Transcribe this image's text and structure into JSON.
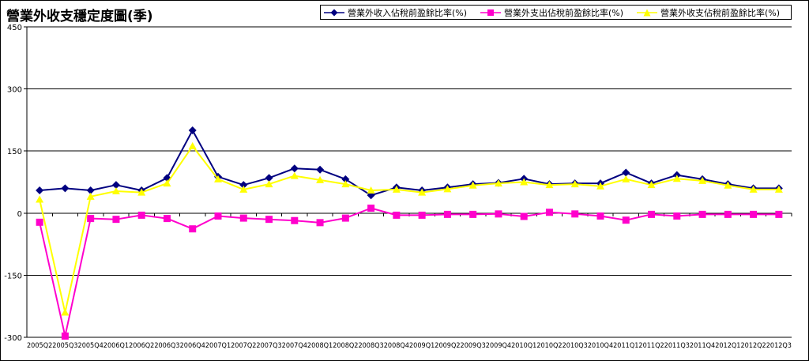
{
  "chart_data": {
    "type": "line",
    "title": "營業外收支穩定度圖(季)",
    "xlabel": "",
    "ylabel": "",
    "ylim": [
      -300,
      450
    ],
    "yticks": [
      "450",
      "300",
      "150",
      "0",
      "-150",
      "-300"
    ],
    "grid": true,
    "legend_position": "top-right",
    "categories": [
      "2005Q2",
      "2005Q3",
      "2005Q4",
      "2006Q1",
      "2006Q2",
      "2006Q3",
      "2006Q4",
      "2007Q1",
      "2007Q2",
      "2007Q3",
      "2007Q4",
      "2008Q1",
      "2008Q2",
      "2008Q3",
      "2008Q4",
      "2009Q1",
      "2009Q2",
      "2009Q3",
      "2009Q4",
      "2010Q1",
      "2010Q2",
      "2010Q3",
      "2010Q4",
      "2011Q1",
      "2011Q2",
      "2011Q3",
      "2011Q4",
      "2012Q1",
      "2012Q2",
      "2012Q3"
    ],
    "series": [
      {
        "name": "營業外收入佔稅前盈餘比率(%)",
        "color": "#000080",
        "marker": "diamond",
        "values": [
          55,
          60,
          55,
          68,
          55,
          85,
          200,
          88,
          68,
          85,
          108,
          105,
          82,
          43,
          62,
          55,
          62,
          70,
          73,
          83,
          70,
          72,
          72,
          98,
          72,
          92,
          82,
          70,
          60,
          60
        ]
      },
      {
        "name": "營業外支出佔稅前盈餘比率(%)",
        "color": "#FF00CC",
        "marker": "square",
        "values": [
          -22,
          -297,
          -13,
          -15,
          -5,
          -13,
          -38,
          -7,
          -12,
          -15,
          -18,
          -23,
          -12,
          12,
          -5,
          -5,
          -3,
          -3,
          -2,
          -8,
          2,
          -2,
          -7,
          -17,
          -3,
          -7,
          -3,
          -3,
          -3,
          -3
        ]
      },
      {
        "name": "營業外收支佔稅前盈餘比率(%)",
        "color": "#FFFF00",
        "marker": "triangle",
        "values": [
          33,
          -240,
          40,
          53,
          50,
          72,
          162,
          82,
          57,
          70,
          90,
          80,
          70,
          55,
          57,
          50,
          58,
          67,
          72,
          75,
          68,
          70,
          65,
          82,
          68,
          83,
          78,
          67,
          57,
          57
        ]
      }
    ]
  }
}
